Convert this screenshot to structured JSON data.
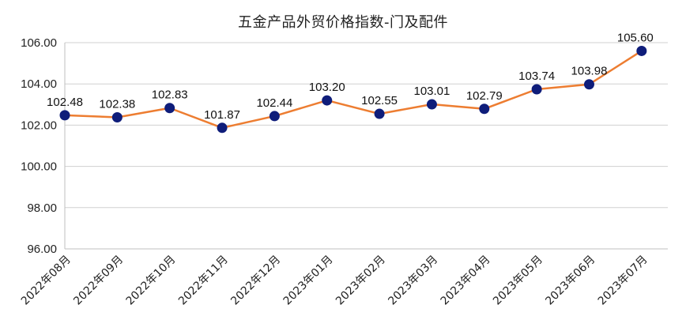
{
  "chart_data": {
    "type": "line",
    "title": "五金产品外贸价格指数-门及配件",
    "xlabel": "",
    "ylabel": "",
    "categories": [
      "2022年08月",
      "2022年09月",
      "2022年10月",
      "2022年11月",
      "2022年12月",
      "2023年01月",
      "2023年02月",
      "2023年03月",
      "2023年04月",
      "2023年05月",
      "2023年06月",
      "2023年07月"
    ],
    "series": [
      {
        "values": [
          102.48,
          102.38,
          102.83,
          101.87,
          102.44,
          103.2,
          102.55,
          103.01,
          102.79,
          103.74,
          103.98,
          105.6
        ]
      }
    ],
    "data_labels": [
      "102.48",
      "102.38",
      "102.83",
      "101.87",
      "102.44",
      "103.20",
      "102.55",
      "103.01",
      "102.79",
      "103.74",
      "103.98",
      "105.60"
    ],
    "ylim": [
      96,
      106
    ],
    "yticks": [
      "96.00",
      "98.00",
      "100.00",
      "102.00",
      "104.00",
      "106.00"
    ],
    "grid": true,
    "legend": "none",
    "colors": {
      "line": "#ED7D31",
      "marker": "#0F1D7A",
      "grid": "#D0D0D0",
      "axis": "#BFBFBF"
    }
  }
}
